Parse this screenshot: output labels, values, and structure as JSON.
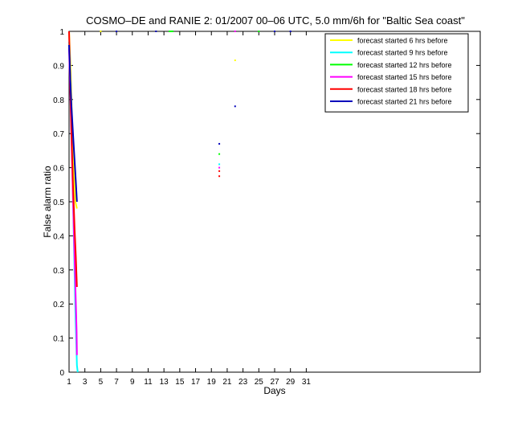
{
  "chart_data": {
    "type": "line",
    "title": "COSMO–DE and RANIE 2: 01/2007 00–06 UTC, 5.0 mm/6h for \"Baltic Sea coast\"",
    "xlabel": "Days",
    "ylabel": "False alarm ratio",
    "xlim": [
      1,
      53
    ],
    "ylim": [
      0,
      1
    ],
    "xticks": [
      1,
      3,
      5,
      7,
      9,
      11,
      13,
      15,
      17,
      19,
      21,
      23,
      25,
      27,
      29,
      31
    ],
    "yticks": [
      0,
      0.1,
      0.2,
      0.3,
      0.4,
      0.5,
      0.6,
      0.7,
      0.8,
      0.9,
      1
    ],
    "ytick_labels": [
      "0",
      "0.1",
      "0.2",
      "0.3",
      "0.4",
      "0.5",
      "0.6",
      "0.7",
      "0.8",
      "0.9",
      "1"
    ],
    "grid": false,
    "legend_position": "top-right",
    "series": [
      {
        "name": "forecast started 6 hrs before",
        "color": "#ffff00",
        "lines": [
          [
            [
              1.0,
              1.0
            ],
            [
              1.2,
              0.88
            ],
            [
              1.4,
              0.72
            ],
            [
              1.6,
              0.6
            ],
            [
              1.8,
              0.5
            ],
            [
              2.0,
              0.48
            ]
          ]
        ],
        "points": [
          [
            5.0,
            1.0
          ],
          [
            22.0,
            0.915
          ],
          [
            13.8,
            1.0
          ]
        ]
      },
      {
        "name": "forecast started 9 hrs before",
        "color": "#00ffff",
        "lines": [
          [
            [
              1.0,
              0.97
            ],
            [
              1.2,
              0.82
            ],
            [
              1.4,
              0.62
            ],
            [
              1.6,
              0.4
            ],
            [
              1.8,
              0.18
            ],
            [
              2.0,
              0.02
            ],
            [
              2.1,
              0.0
            ]
          ]
        ],
        "points": [
          [
            20.0,
            0.61
          ],
          [
            13.8,
            1.0
          ]
        ]
      },
      {
        "name": "forecast started 12 hrs before",
        "color": "#00ff00",
        "lines": [
          [
            [
              13.6,
              1.0
            ],
            [
              14.2,
              1.0
            ]
          ]
        ],
        "points": [
          [
            20.0,
            0.64
          ],
          [
            25.0,
            1.0
          ]
        ]
      },
      {
        "name": "forecast started 15 hrs before",
        "color": "#ff00ff",
        "lines": [
          [
            [
              1.0,
              0.95
            ],
            [
              1.2,
              0.78
            ],
            [
              1.4,
              0.6
            ],
            [
              1.6,
              0.42
            ],
            [
              1.8,
              0.25
            ],
            [
              1.95,
              0.12
            ],
            [
              2.0,
              0.05
            ]
          ]
        ],
        "points": [
          [
            20.0,
            0.6
          ],
          [
            22.0,
            1.0
          ]
        ]
      },
      {
        "name": "forecast started 18 hrs before",
        "color": "#ff0000",
        "lines": [
          [
            [
              1.0,
              1.0
            ],
            [
              1.15,
              0.85
            ],
            [
              1.3,
              0.7
            ],
            [
              1.5,
              0.55
            ],
            [
              1.7,
              0.42
            ],
            [
              1.85,
              0.34
            ],
            [
              2.0,
              0.25
            ]
          ]
        ],
        "points": [
          [
            20.0,
            0.575
          ],
          [
            20.0,
            0.59
          ]
        ]
      },
      {
        "name": "forecast started 21 hrs before",
        "color": "#0000bb",
        "lines": [
          [
            [
              1.0,
              0.96
            ],
            [
              1.15,
              0.86
            ],
            [
              1.3,
              0.78
            ],
            [
              1.5,
              0.7
            ],
            [
              1.7,
              0.62
            ],
            [
              1.85,
              0.56
            ],
            [
              2.0,
              0.5
            ]
          ]
        ],
        "points": [
          [
            20.0,
            0.67
          ],
          [
            22.0,
            0.78
          ],
          [
            7.0,
            1.0
          ],
          [
            12.0,
            1.0
          ],
          [
            27.0,
            1.0
          ],
          [
            29.0,
            1.0
          ]
        ]
      }
    ]
  }
}
